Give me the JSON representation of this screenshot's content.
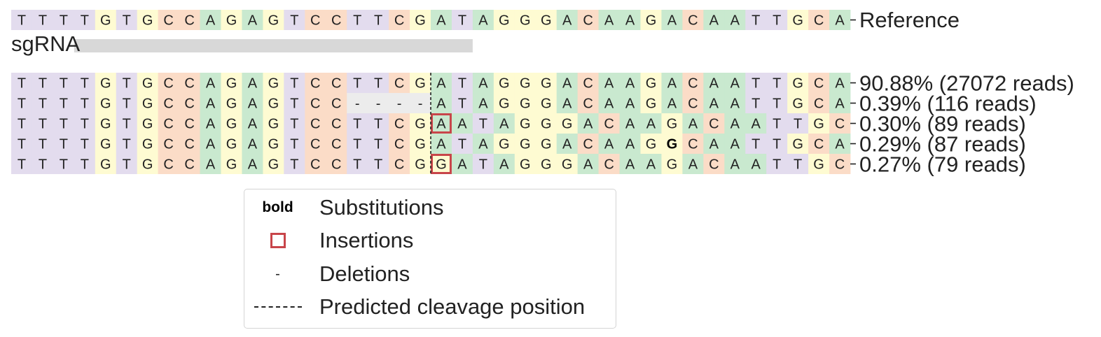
{
  "colors": {
    "A": "#c9e9cf",
    "C": "#fbdcc7",
    "G": "#fefbd2",
    "T": "#e3dcee",
    "gap": "#ececec",
    "sgrna_bar": "#d8d8d8",
    "insertion": "#c8454a",
    "text": "#222222"
  },
  "reference": {
    "sequence": "TTTTGTGCCAGAGTCCTTCGATAGGGACAAGACAATTGCA",
    "label": "Reference"
  },
  "sgrna": {
    "label": "sgRNA",
    "start_index": 3,
    "end_index": 22
  },
  "cleavage_after_index": 20,
  "alleles": [
    {
      "sequence": "TTTTGTGCCAGAGTCCTTCGATAGGGACAAGACAATTGCA",
      "label": "90.88% (27072 reads)",
      "insertions": [],
      "substitutions": []
    },
    {
      "sequence": "TTTTGTGCCAGAGTCC----ATAGGGACAAGACAATTGCA",
      "label": "0.39% (116 reads)",
      "insertions": [],
      "substitutions": []
    },
    {
      "sequence": "TTTTGTGCCAGAGTCCTTCGAATAGGGACAAGACAATTGC",
      "label": "0.30% (89 reads)",
      "insertions": [
        20
      ],
      "substitutions": []
    },
    {
      "sequence": "TTTTGTGCCAGAGTCCTTCGATAGGGACAAGGCAATTGCA",
      "label": "0.29% (87 reads)",
      "insertions": [],
      "substitutions": [
        31
      ]
    },
    {
      "sequence": "TTTTGTGCCAGAGTCCTTCGGATAGGGACAAGACAATTGC",
      "label": "0.27% (79 reads)",
      "insertions": [
        20
      ],
      "substitutions": []
    }
  ],
  "legend": {
    "bold_key": "bold",
    "substitutions": "Substitutions",
    "insertions": "Insertions",
    "deletion_key": "-",
    "deletions": "Deletions",
    "cleavage": "Predicted cleavage position"
  }
}
